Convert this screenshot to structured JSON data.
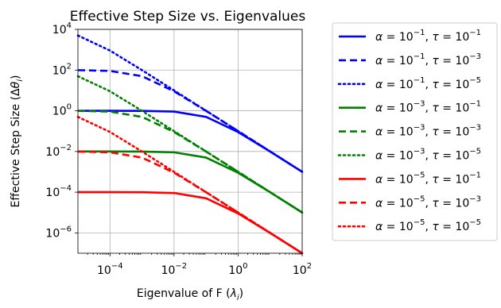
{
  "chart_data": {
    "type": "line",
    "title": "Effective Step Size vs. Eigenvalues",
    "xlabel": "Eigenvalue of F (λ_i)",
    "ylabel": "Effective Step Size (Δθ_i)",
    "x_scale": "log",
    "y_scale": "log",
    "xlim": [
      1e-05,
      100
    ],
    "ylim": [
      1e-07,
      10000
    ],
    "grid": true,
    "legend_position": "outside right",
    "x_ticks": [
      {
        "value": 0.0001,
        "base": "10",
        "exp": "−4"
      },
      {
        "value": 0.01,
        "base": "10",
        "exp": "−2"
      },
      {
        "value": 1,
        "base": "10",
        "exp": "0"
      },
      {
        "value": 100,
        "base": "10",
        "exp": "2"
      }
    ],
    "y_ticks": [
      {
        "value": 1e-06,
        "base": "10",
        "exp": "−6"
      },
      {
        "value": 0.0001,
        "base": "10",
        "exp": "−4"
      },
      {
        "value": 0.01,
        "base": "10",
        "exp": "−2"
      },
      {
        "value": 1,
        "base": "10",
        "exp": "0"
      },
      {
        "value": 100,
        "base": "10",
        "exp": "2"
      },
      {
        "value": 10000,
        "base": "10",
        "exp": "4"
      }
    ],
    "series": [
      {
        "alpha_exp": "−1",
        "tau_exp": "−1",
        "color": "#0000ff",
        "style": "solid",
        "x": [
          1e-05,
          0.0001,
          0.001,
          0.01,
          0.1,
          1,
          10,
          100
        ],
        "y": [
          1.0,
          1.0,
          0.99,
          0.91,
          0.5,
          0.09,
          0.0099,
          0.001
        ]
      },
      {
        "alpha_exp": "−1",
        "tau_exp": "−3",
        "color": "#0000ff",
        "style": "dashed",
        "x": [
          1e-05,
          0.0001,
          0.001,
          0.01,
          0.1,
          1,
          10,
          100
        ],
        "y": [
          99,
          91,
          50,
          9.1,
          0.99,
          0.1,
          0.01,
          0.001
        ]
      },
      {
        "alpha_exp": "−1",
        "tau_exp": "−5",
        "color": "#0000ff",
        "style": "dotted",
        "x": [
          1e-05,
          0.0001,
          0.001,
          0.01,
          0.1,
          1,
          10,
          100
        ],
        "y": [
          5000,
          909,
          99,
          10,
          1.0,
          0.1,
          0.01,
          0.001
        ]
      },
      {
        "alpha_exp": "−3",
        "tau_exp": "−1",
        "color": "#008000",
        "style": "solid",
        "x": [
          1e-05,
          0.0001,
          0.001,
          0.01,
          0.1,
          1,
          10,
          100
        ],
        "y": [
          0.01,
          0.01,
          0.0099,
          0.0091,
          0.005,
          0.0009,
          9.9e-05,
          1e-05
        ]
      },
      {
        "alpha_exp": "−3",
        "tau_exp": "−3",
        "color": "#008000",
        "style": "dashed",
        "x": [
          1e-05,
          0.0001,
          0.001,
          0.01,
          0.1,
          1,
          10,
          100
        ],
        "y": [
          0.99,
          0.91,
          0.5,
          0.091,
          0.0099,
          0.001,
          0.0001,
          1e-05
        ]
      },
      {
        "alpha_exp": "−3",
        "tau_exp": "−5",
        "color": "#008000",
        "style": "dotted",
        "x": [
          1e-05,
          0.0001,
          0.001,
          0.01,
          0.1,
          1,
          10,
          100
        ],
        "y": [
          50,
          9.1,
          0.99,
          0.1,
          0.01,
          0.001,
          0.0001,
          1e-05
        ]
      },
      {
        "alpha_exp": "−5",
        "tau_exp": "−1",
        "color": "#ff0000",
        "style": "solid",
        "x": [
          1e-05,
          0.0001,
          0.001,
          0.01,
          0.1,
          1,
          10,
          100
        ],
        "y": [
          0.0001,
          0.0001,
          9.9e-05,
          9.1e-05,
          5e-05,
          9e-06,
          9.9e-07,
          1e-07
        ]
      },
      {
        "alpha_exp": "−5",
        "tau_exp": "−3",
        "color": "#ff0000",
        "style": "dashed",
        "x": [
          1e-05,
          0.0001,
          0.001,
          0.01,
          0.1,
          1,
          10,
          100
        ],
        "y": [
          0.0099,
          0.0091,
          0.005,
          0.00091,
          9.9e-05,
          1e-05,
          1e-06,
          1e-07
        ]
      },
      {
        "alpha_exp": "−5",
        "tau_exp": "−5",
        "color": "#ff0000",
        "style": "dotted",
        "x": [
          1e-05,
          0.0001,
          0.001,
          0.01,
          0.1,
          1,
          10,
          100
        ],
        "y": [
          0.5,
          0.091,
          0.0099,
          0.001,
          0.0001,
          1e-05,
          1e-06,
          1e-07
        ]
      }
    ]
  }
}
